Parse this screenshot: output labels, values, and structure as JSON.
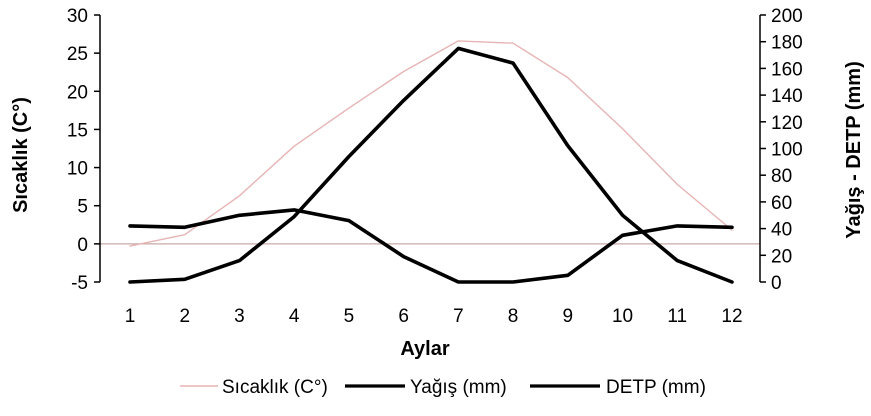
{
  "chart_data": {
    "type": "line",
    "xlabel": "Aylar",
    "ylabel_left": "Sıcaklık (C°)",
    "ylabel_right": "Yağış - DETP (mm)",
    "x": [
      1,
      2,
      3,
      4,
      5,
      6,
      7,
      8,
      9,
      10,
      11,
      12
    ],
    "x_tick_labels": [
      "1",
      "2",
      "3",
      "4",
      "5",
      "6",
      "7",
      "8",
      "9",
      "10",
      "11",
      "12"
    ],
    "ylim_left": [
      -5,
      30
    ],
    "yticks_left": [
      "-5",
      "0",
      "5",
      "10",
      "15",
      "20",
      "25",
      "30"
    ],
    "ylim_right": [
      0,
      200
    ],
    "yticks_right": [
      "0",
      "20",
      "40",
      "60",
      "80",
      "100",
      "120",
      "140",
      "160",
      "180",
      "200"
    ],
    "zero_line": true,
    "grid": false,
    "legend_position": "bottom",
    "series": [
      {
        "name": "Sıcaklık (C°)",
        "axis": "left",
        "color": "#e7b4b4",
        "values": [
          -0.3,
          1.2,
          6.3,
          12.8,
          17.8,
          22.6,
          26.6,
          26.3,
          21.8,
          15.1,
          7.8,
          1.8
        ]
      },
      {
        "name": "Yağış (mm)",
        "axis": "right",
        "color": "#000000",
        "values": [
          42,
          41,
          50,
          54,
          46,
          19,
          0,
          0,
          5,
          35,
          42,
          41
        ]
      },
      {
        "name": "DETP (mm)",
        "axis": "right",
        "color": "#000000",
        "values": [
          0,
          2,
          16,
          49,
          94,
          136,
          175,
          164,
          102,
          50,
          16,
          0
        ]
      }
    ]
  }
}
